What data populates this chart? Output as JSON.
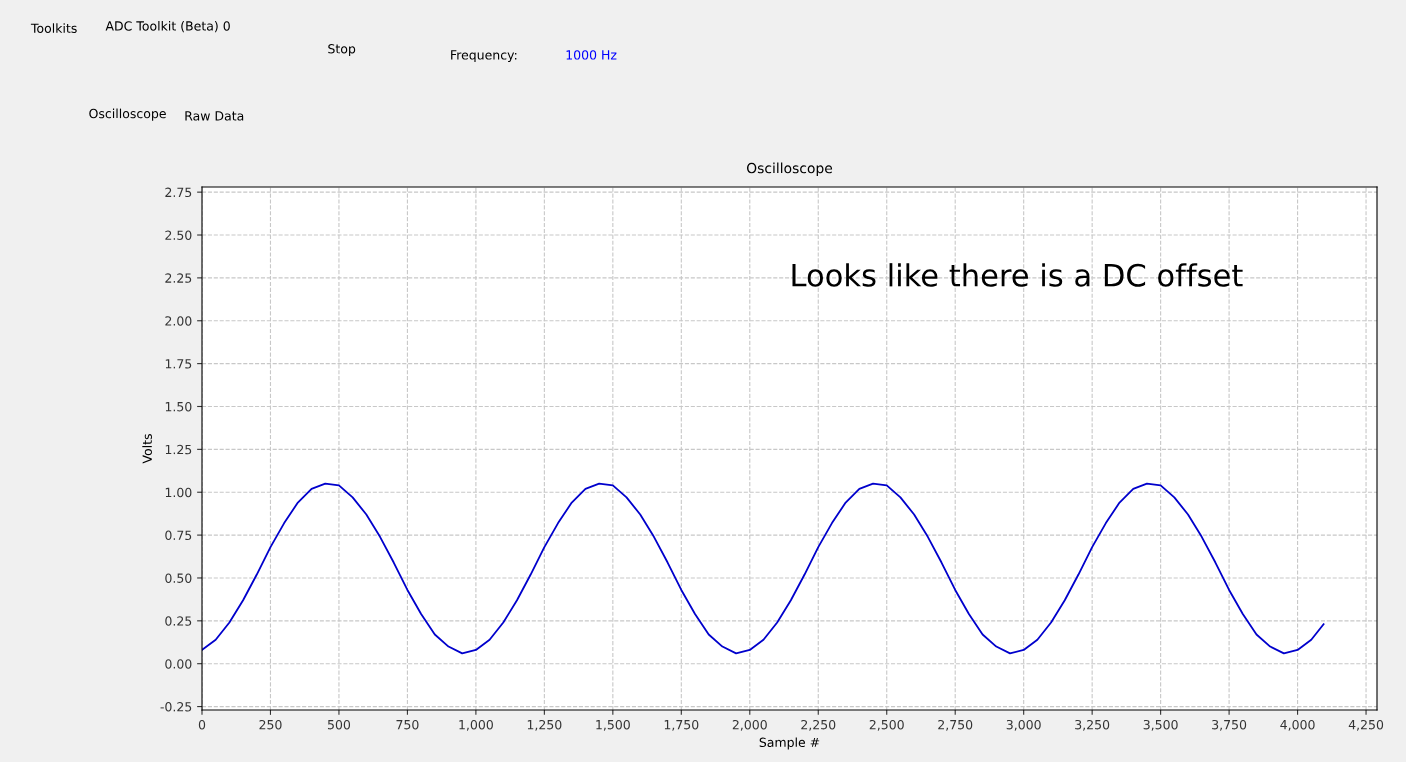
{
  "chart_data": {
    "type": "line",
    "title": "Oscilloscope",
    "xlabel": "Sample #",
    "ylabel": "Volts",
    "annotations": [
      "Looks like there is a DC offset",
      "Toolkits",
      "ADC Toolkit (Beta) 0",
      "Stop",
      "Frequency:",
      "1000 Hz",
      "Oscilloscope",
      "Raw Data"
    ],
    "x": [
      0,
      50,
      100,
      150,
      200,
      250,
      300,
      350,
      400,
      450,
      500,
      550,
      600,
      650,
      700,
      750,
      800,
      850,
      900,
      950,
      1000,
      1050,
      1100,
      1150,
      1200,
      1250,
      1300,
      1350,
      1400,
      1450,
      1500,
      1550,
      1600,
      1650,
      1700,
      1750,
      1800,
      1850,
      1900,
      1950,
      2000,
      2050,
      2100,
      2150,
      2200,
      2250,
      2300,
      2350,
      2400,
      2450,
      2500,
      2550,
      2600,
      2650,
      2700,
      2750,
      2800,
      2850,
      2900,
      2950,
      3000,
      3050,
      3100,
      3150,
      3200,
      3250,
      3300,
      3350,
      3400,
      3450,
      3500,
      3550,
      3600,
      3650,
      3700,
      3750,
      3800,
      3850,
      3900,
      3950,
      4000,
      4050,
      4095
    ],
    "series": [
      {
        "color": "#0000cc",
        "values": [
          0.08,
          0.14,
          0.24,
          0.37,
          0.52,
          0.68,
          0.82,
          0.94,
          1.02,
          1.05,
          1.04,
          0.97,
          0.87,
          0.74,
          0.59,
          0.43,
          0.29,
          0.17,
          0.1,
          0.06,
          0.08,
          0.14,
          0.24,
          0.37,
          0.52,
          0.68,
          0.82,
          0.94,
          1.02,
          1.05,
          1.04,
          0.97,
          0.87,
          0.74,
          0.59,
          0.43,
          0.29,
          0.17,
          0.1,
          0.06,
          0.08,
          0.14,
          0.24,
          0.37,
          0.52,
          0.68,
          0.82,
          0.94,
          1.02,
          1.05,
          1.04,
          0.97,
          0.87,
          0.74,
          0.59,
          0.43,
          0.29,
          0.17,
          0.1,
          0.06,
          0.08,
          0.14,
          0.24,
          0.37,
          0.52,
          0.68,
          0.82,
          0.94,
          1.02,
          1.05,
          1.04,
          0.97,
          0.87,
          0.74,
          0.59,
          0.43,
          0.29,
          0.17,
          0.1,
          0.06,
          0.08,
          0.14,
          0.23
        ]
      }
    ],
    "xlim": [
      0,
      4290
    ],
    "ylim": [
      -0.27,
      2.78
    ],
    "xticks": [
      0,
      250,
      500,
      750,
      {
        "value": 1000,
        "label": "1,000"
      },
      {
        "value": 1250,
        "label": "1,250"
      },
      {
        "value": 1500,
        "label": "1,500"
      },
      {
        "value": 1750,
        "label": "1,750"
      },
      {
        "value": 2000,
        "label": "2,000"
      },
      {
        "value": 2250,
        "label": "2,250"
      },
      {
        "value": 2500,
        "label": "2,500"
      },
      {
        "value": 2750,
        "label": "2,750"
      },
      {
        "value": 3000,
        "label": "3,000"
      },
      {
        "value": 3250,
        "label": "3,250"
      },
      {
        "value": 3500,
        "label": "3,500"
      },
      {
        "value": 3750,
        "label": "3,750"
      },
      {
        "value": 4000,
        "label": "4,000"
      },
      {
        "value": 4250,
        "label": "4,250"
      }
    ],
    "yticks": [
      {
        "value": -0.25,
        "label": "-0.25"
      },
      {
        "value": 0,
        "label": "0.00"
      },
      0.25,
      {
        "value": 0.5,
        "label": "0.50"
      },
      0.75,
      {
        "value": 1,
        "label": "1.00"
      },
      1.25,
      {
        "value": 1.5,
        "label": "1.50"
      },
      1.75,
      {
        "value": 2,
        "label": "2.00"
      },
      2.25,
      {
        "value": 2.5,
        "label": "2.50"
      },
      2.75
    ],
    "grid": true,
    "line_style": "solid",
    "marker": "none",
    "legend": false
  }
}
